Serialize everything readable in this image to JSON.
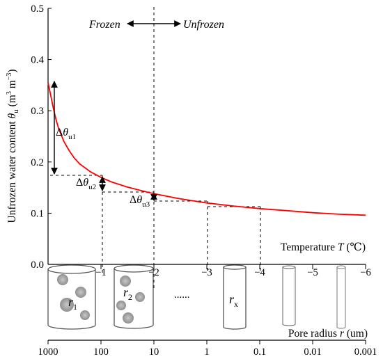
{
  "chart_data": {
    "type": "line",
    "title": "",
    "ylabel_main": "Unfrozen water content ",
    "ylabel_symbol": "θ",
    "ylabel_sub": "u",
    "ylabel_units_open": " (m",
    "ylabel_units_sup1": "3",
    "ylabel_units_mid": " m",
    "ylabel_units_sup2": "−3",
    "ylabel_units_close": ")",
    "temp_axis_label_text": "Temperature ",
    "temp_axis_label_symbol": "T",
    "temp_axis_label_unit": " (℃)",
    "y_ticks": [
      "0.0",
      "0.1",
      "0.2",
      "0.3",
      "0.4",
      "0.5"
    ],
    "ylim": [
      0,
      0.5
    ],
    "xlim": [
      0,
      -6
    ],
    "temp_ticks": [
      {
        "label": "−1",
        "value": -1
      },
      {
        "label": "−2",
        "value": -2
      },
      {
        "label": "−3",
        "value": -3
      },
      {
        "label": "−4",
        "value": -4
      },
      {
        "label": "−5",
        "value": -5
      },
      {
        "label": "−6",
        "value": -6
      }
    ],
    "series": [
      {
        "color": "#ff0000",
        "x": [
          0.0,
          -0.05,
          -0.1,
          -0.15,
          -0.2,
          -0.3,
          -0.4,
          -0.5,
          -0.6,
          -0.8,
          -1.0,
          -1.2,
          -1.5,
          -1.8,
          -2.0,
          -2.5,
          -3.0,
          -3.5,
          -4.0,
          -4.5,
          -5.0,
          -5.5,
          -6.0
        ],
        "y": [
          0.355,
          0.33,
          0.305,
          0.283,
          0.265,
          0.24,
          0.222,
          0.207,
          0.196,
          0.181,
          0.17,
          0.161,
          0.151,
          0.143,
          0.138,
          0.128,
          0.12,
          0.114,
          0.109,
          0.105,
          0.101,
          0.098,
          0.096
        ]
      }
    ],
    "frozen_label": "Frozen",
    "unfrozen_label": "Unfrozen",
    "annotations": [
      {
        "prefix": "Δ",
        "symbol": "θ",
        "sub": "u1"
      },
      {
        "prefix": "Δ",
        "symbol": "θ",
        "sub": "u2"
      },
      {
        "prefix": "Δ",
        "symbol": "θ",
        "sub": "u3"
      }
    ],
    "pore_axis_label_text": "Pore radius ",
    "pore_axis_label_symbol": "r",
    "pore_axis_label_unit": " (um)",
    "pore_ticks": [
      "1000",
      "100",
      "10",
      "1",
      "0.1",
      "0.01",
      "0.001"
    ],
    "pore_labels": [
      {
        "symbol": "r",
        "sub": "1"
      },
      {
        "symbol": "r",
        "sub": "2"
      },
      {
        "symbol": "r",
        "sub": "x"
      }
    ],
    "ellipsis": "......"
  }
}
